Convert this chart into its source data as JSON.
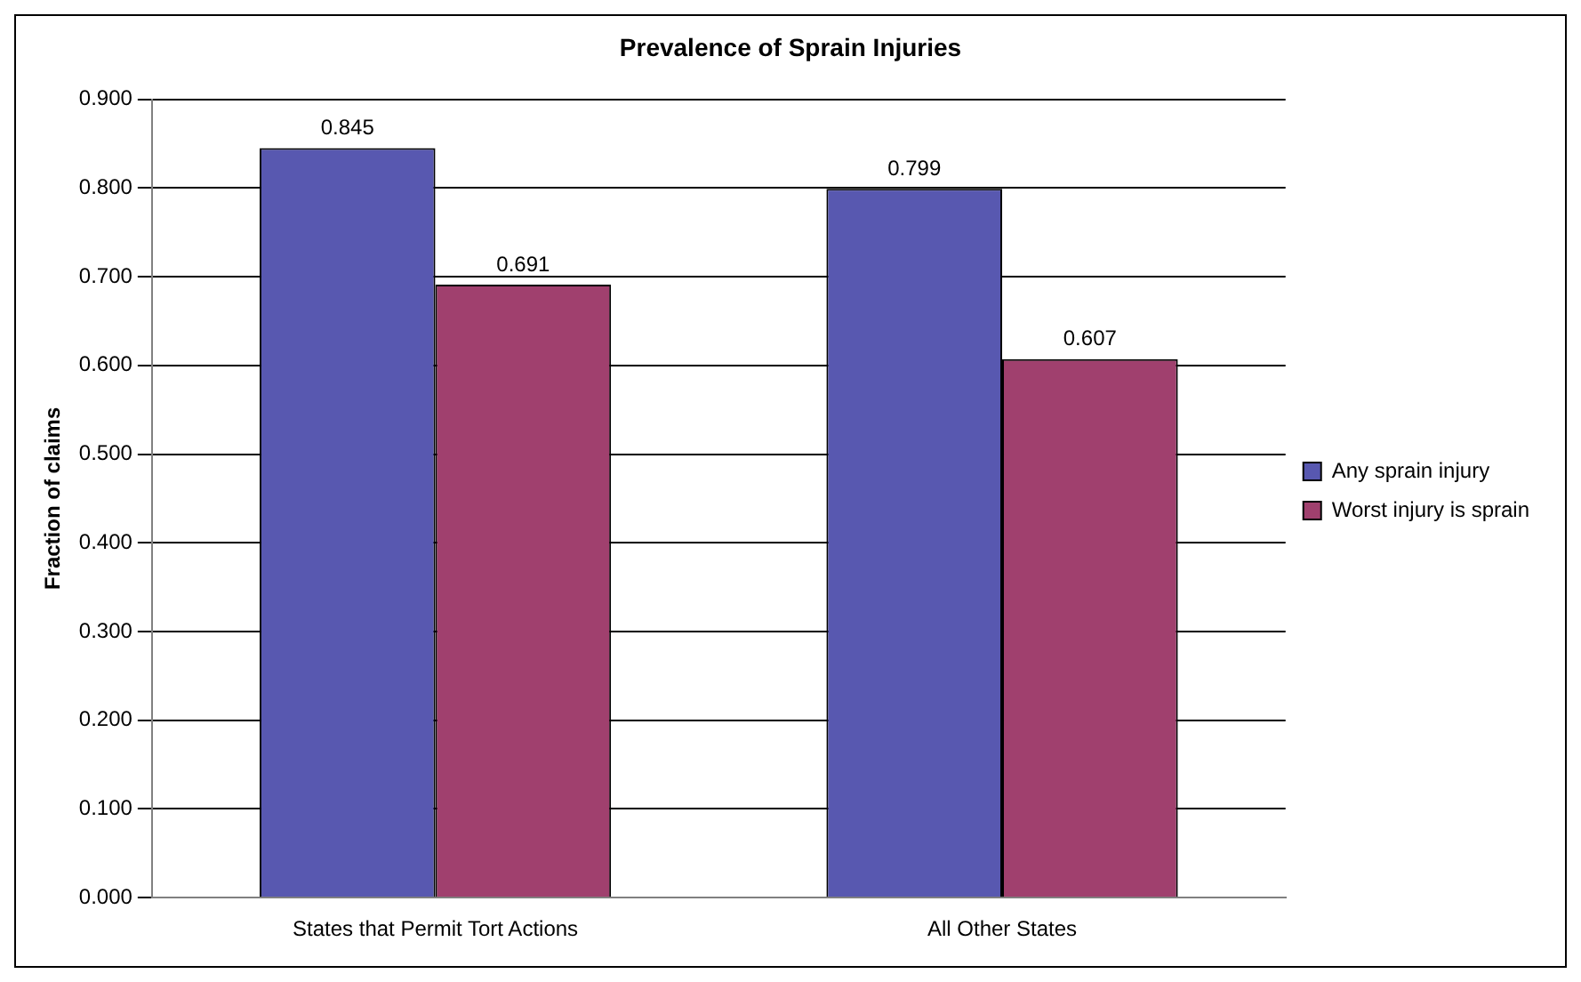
{
  "chart_data": {
    "type": "bar",
    "title": "Prevalence of Sprain Injuries",
    "ylabel": "Fraction of claims",
    "categories": [
      "States that Permit Tort Actions",
      "All Other States"
    ],
    "series": [
      {
        "name": "Any sprain injury",
        "color": "#5858b0",
        "values": [
          0.845,
          0.799
        ]
      },
      {
        "name": "Worst injury is sprain",
        "color": "#a0406e",
        "values": [
          0.691,
          0.607
        ]
      }
    ],
    "ylim": [
      0,
      0.9
    ],
    "yticks": [
      {
        "value": 0,
        "label": "0.000"
      },
      {
        "value": 0.1,
        "label": "0.100"
      },
      {
        "value": 0.2,
        "label": "0.200"
      },
      {
        "value": 0.3,
        "label": "0.300"
      },
      {
        "value": 0.4,
        "label": "0.400"
      },
      {
        "value": 0.5,
        "label": "0.500"
      },
      {
        "value": 0.6,
        "label": "0.600"
      },
      {
        "value": 0.7,
        "label": "0.700"
      },
      {
        "value": 0.8,
        "label": "0.800"
      },
      {
        "value": 0.9,
        "label": "0.900"
      }
    ],
    "grid": "y",
    "legend": "right",
    "data_labels": true
  }
}
